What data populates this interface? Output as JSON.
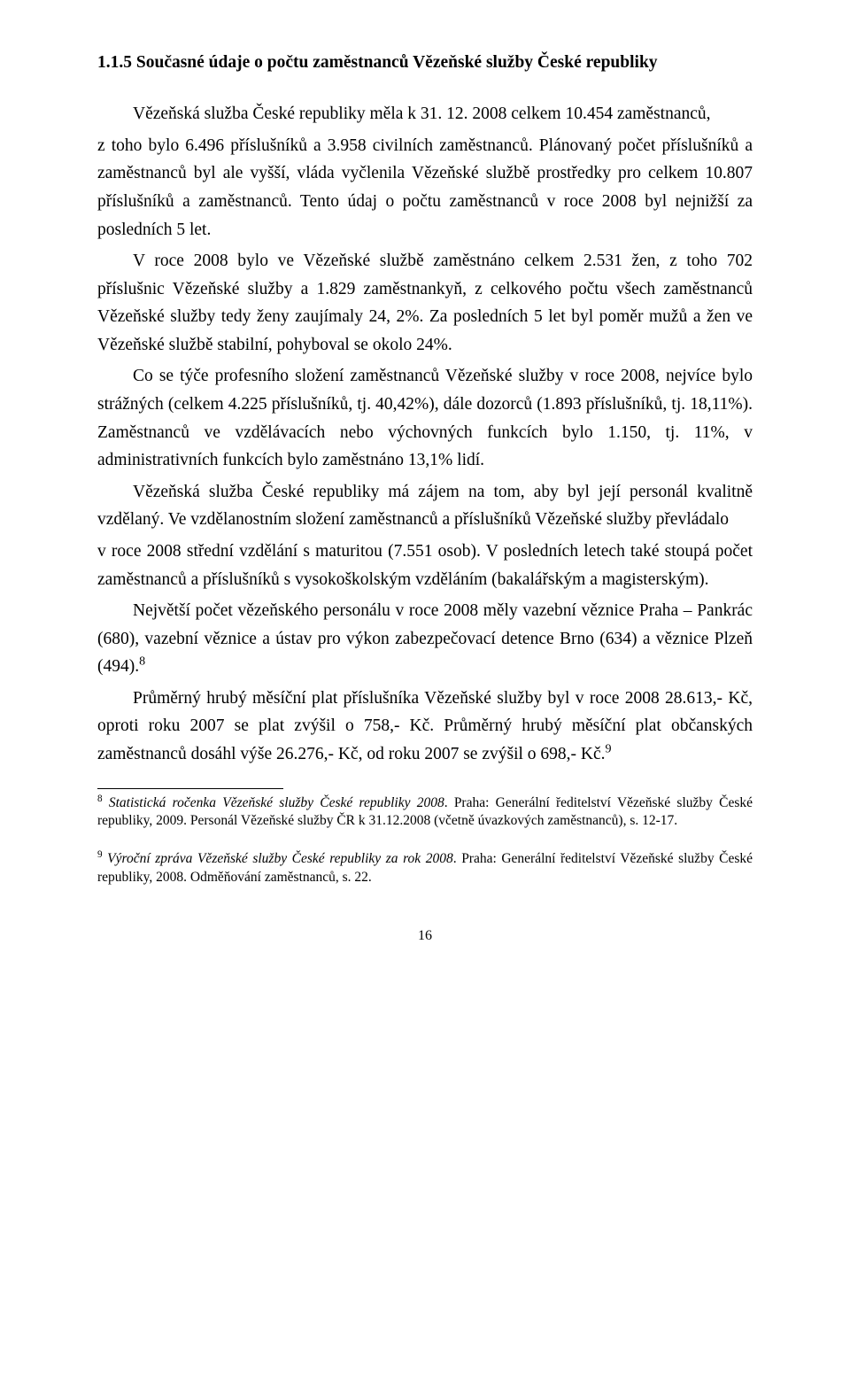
{
  "heading": "1.1.5 Současné údaje o počtu zaměstnanců Vězeňské služby České republiky",
  "paragraphs": {
    "p1a": "Vězeňská služba České republiky měla k 31. 12. 2008 celkem 10.454 zaměstnanců,",
    "p1b": "z toho bylo 6.496 příslušníků a 3.958 civilních zaměstnanců. Plánovaný počet příslušníků a zaměstnanců byl ale vyšší, vláda vyčlenila Vězeňské službě prostředky pro celkem 10.807 příslušníků a zaměstnanců. Tento údaj o počtu zaměstnanců v roce 2008 byl nejnižší za posledních 5 let.",
    "p2": "V roce 2008 bylo ve Vězeňské službě zaměstnáno celkem 2.531 žen, z toho 702 příslušnic Vězeňské služby a 1.829 zaměstnankyň, z celkového počtu všech zaměstnanců Vězeňské služby tedy ženy zaujímaly 24, 2%. Za posledních 5 let byl poměr mužů a žen ve Vězeňské službě stabilní, pohyboval se okolo 24%.",
    "p3": "Co se týče profesního složení zaměstnanců Vězeňské služby v roce 2008, nejvíce bylo strážných (celkem 4.225 příslušníků, tj. 40,42%), dále dozorců (1.893 příslušníků, tj. 18,11%). Zaměstnanců ve vzdělávacích nebo výchovných funkcích bylo 1.150, tj. 11%, v administrativních funkcích bylo zaměstnáno 13,1% lidí.",
    "p4": "Vězeňská služba České republiky má zájem na tom, aby byl její personál kvalitně vzdělaný. Ve vzdělanostním složení zaměstnanců a příslušníků Vězeňské služby převládalo",
    "p5": "v roce 2008 střední vzdělání s maturitou (7.551 osob). V posledních letech také stoupá počet zaměstnanců a příslušníků s vysokoškolským vzděláním (bakalářským a magisterským).",
    "p6a": "Největší počet vězeňského personálu v roce 2008 měly vazební věznice Praha – Pankrác (680),  vazební věznice a ústav pro výkon zabezpečovací  detence Brno (634) a věznice Plzeň (494).",
    "p7a": "Průměrný hrubý měsíční plat příslušníka Vězeňské služby byl v roce 2008 28.613,- Kč, oproti roku 2007 se plat zvýšil o 758,- Kč. Průměrný hrubý měsíční plat občanských zaměstnanců dosáhl výše 26.276,- Kč, od roku 2007 se zvýšil o 698,- Kč."
  },
  "sup8": "8",
  "sup9": "9",
  "footnotes": {
    "f8_sup": "8",
    "f8_italic": "Statistická ročenka Vězeňské služby České republiky 2008",
    "f8_rest": ". Praha: Generální ředitelství Vězeňské služby České republiky, 2009. Personál Vězeňské služby ČR k 31.12.2008 (včetně úvazkových zaměstnanců), s. 12-17.",
    "f9_sup": "9",
    "f9_italic": "Výroční zpráva Vězeňské služby České republiky za rok 2008",
    "f9_rest": ". Praha: Generální ředitelství Vězeňské služby České republiky, 2008. Odměňování zaměstnanců, s. 22."
  },
  "page_number": "16"
}
